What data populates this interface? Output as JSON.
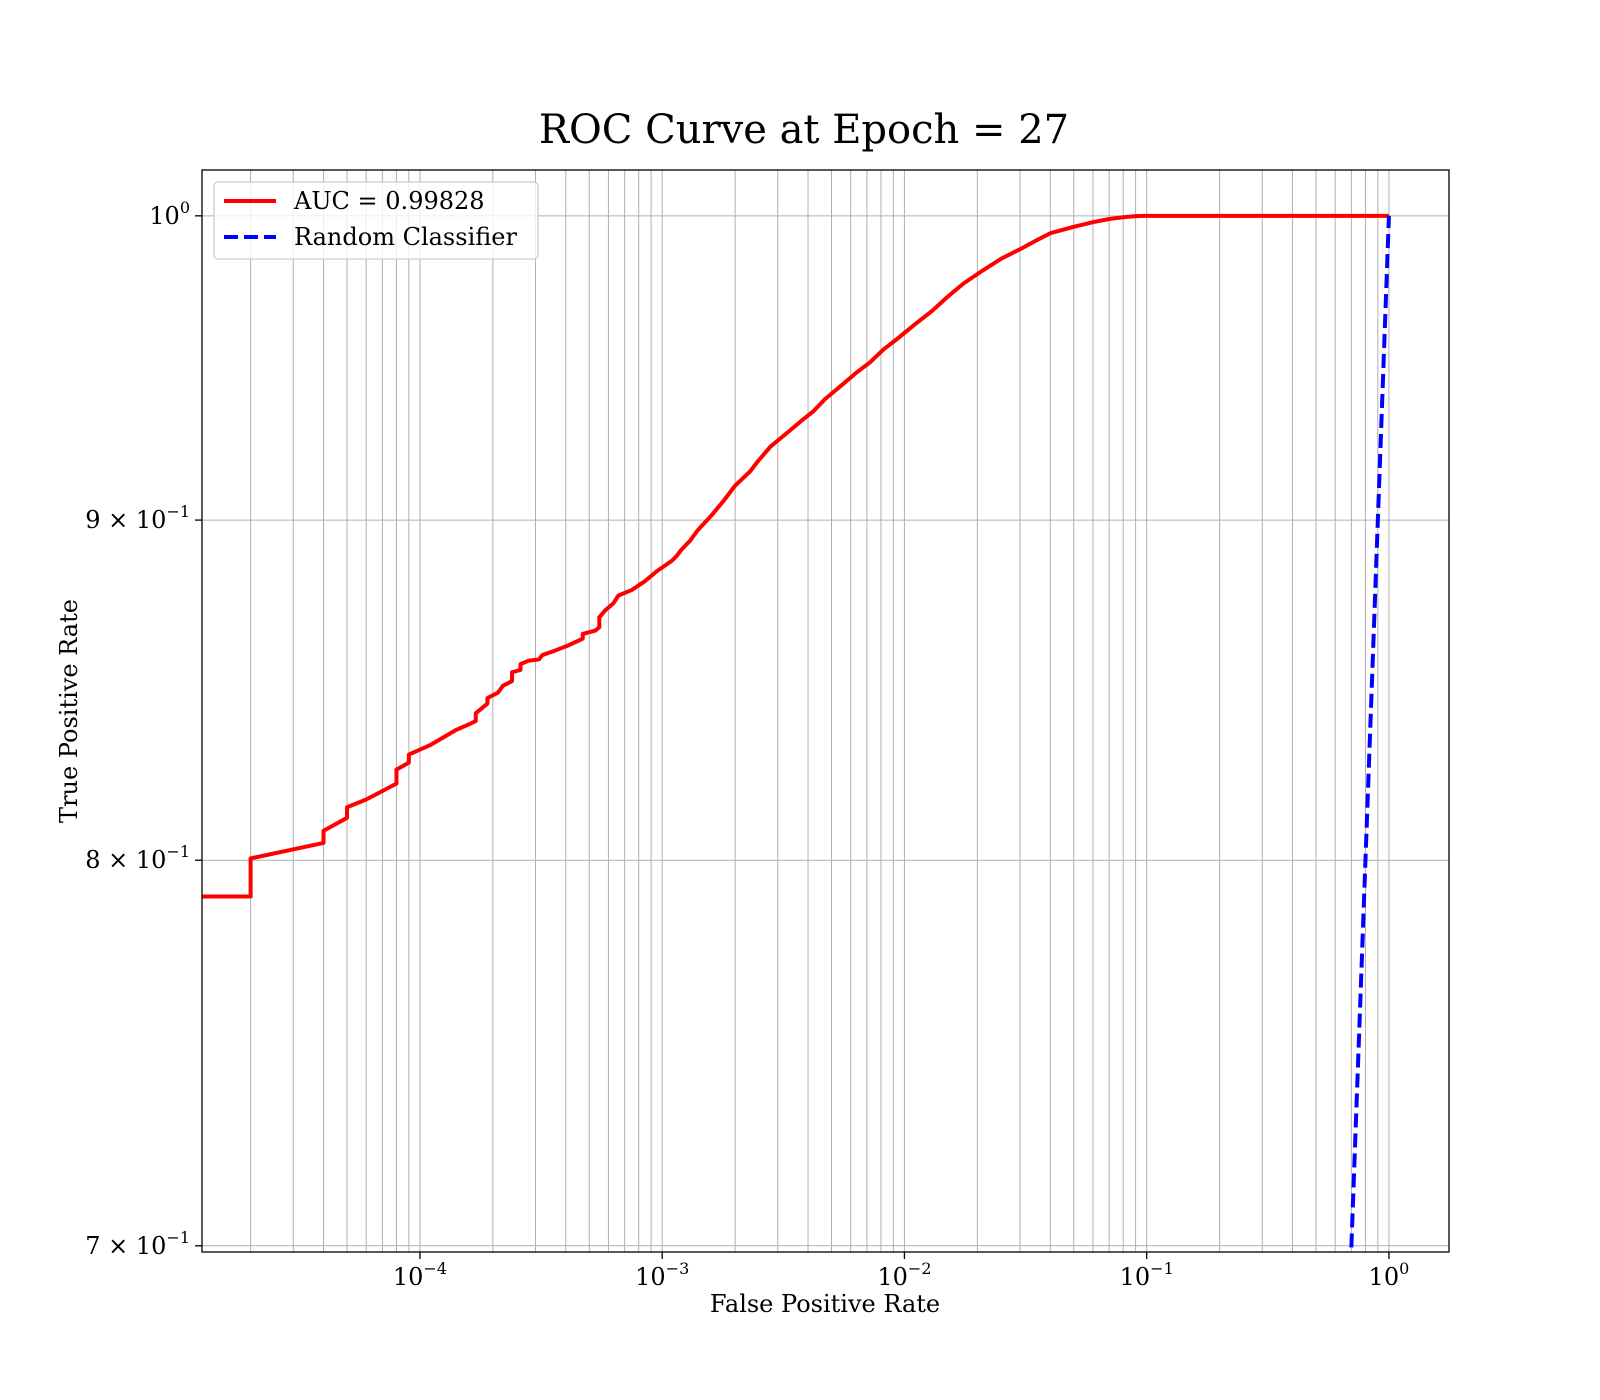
{
  "chart_data": {
    "type": "line",
    "title": "ROC Curve at Epoch = 27",
    "xlabel": "False Positive Rate",
    "ylabel": "True Positive Rate",
    "xscale": "log",
    "yscale": "log",
    "xlim": [
      1.26e-05,
      1.77
    ],
    "ylim": [
      0.6985,
      1.016
    ],
    "grid": "both major and minor",
    "legend_position": "upper left",
    "x_ticks": [
      {
        "base": "10",
        "exp": "−4",
        "value": 0.0001
      },
      {
        "base": "10",
        "exp": "−3",
        "value": 0.001
      },
      {
        "base": "10",
        "exp": "−2",
        "value": 0.01
      },
      {
        "base": "10",
        "exp": "−1",
        "value": 0.1
      },
      {
        "base": "10",
        "exp": "0",
        "value": 1
      }
    ],
    "y_ticks": [
      {
        "mant": "",
        "base": "10",
        "exp": "0",
        "value": 1.0
      },
      {
        "mant": "9 × ",
        "base": "10",
        "exp": "−1",
        "value": 0.9
      },
      {
        "mant": "8 × ",
        "base": "10",
        "exp": "−1",
        "value": 0.8
      },
      {
        "mant": "7 × ",
        "base": "10",
        "exp": "−1",
        "value": 0.7
      }
    ],
    "series": [
      {
        "name": "AUC = 0.99828",
        "color": "#ff0000",
        "style": "solid",
        "x": [
          1.26e-05,
          2e-05,
          2e-05,
          4e-05,
          4e-05,
          5e-05,
          5e-05,
          6e-05,
          8e-05,
          8e-05,
          9e-05,
          9e-05,
          0.00011,
          0.00014,
          0.00016,
          0.00017,
          0.00017,
          0.00018,
          0.00019,
          0.00019,
          0.00021,
          0.00022,
          0.00024,
          0.00024,
          0.00026,
          0.00026,
          0.00028,
          0.00031,
          0.00032,
          0.00036,
          0.00041,
          0.00047,
          0.00047,
          0.00053,
          0.00055,
          0.00055,
          0.00058,
          0.00063,
          0.00066,
          0.00075,
          0.00085,
          0.00095,
          0.0011,
          0.00115,
          0.0012,
          0.0013,
          0.0014,
          0.0016,
          0.0018,
          0.002,
          0.0023,
          0.0025,
          0.0028,
          0.0033,
          0.0038,
          0.0042,
          0.0047,
          0.0055,
          0.0063,
          0.0072,
          0.0082,
          0.0093,
          0.011,
          0.013,
          0.015,
          0.0175,
          0.021,
          0.025,
          0.03,
          0.035,
          0.04,
          0.05,
          0.06,
          0.07,
          0.08,
          0.09,
          0.1,
          0.115,
          0.14,
          0.2,
          0.5,
          1.0
        ],
        "y": [
          0.79,
          0.79,
          0.8005,
          0.8048,
          0.8082,
          0.8118,
          0.8148,
          0.817,
          0.8215,
          0.8255,
          0.8275,
          0.8298,
          0.8325,
          0.8368,
          0.8386,
          0.8395,
          0.8418,
          0.8432,
          0.8446,
          0.8462,
          0.8478,
          0.8498,
          0.8512,
          0.8538,
          0.8545,
          0.8562,
          0.8572,
          0.8576,
          0.8589,
          0.8602,
          0.8618,
          0.8638,
          0.8652,
          0.8662,
          0.8672,
          0.8702,
          0.8722,
          0.8745,
          0.8768,
          0.8785,
          0.8812,
          0.8842,
          0.8875,
          0.889,
          0.8908,
          0.8935,
          0.8968,
          0.9015,
          0.9062,
          0.9108,
          0.9152,
          0.9188,
          0.9232,
          0.9278,
          0.9318,
          0.9345,
          0.9385,
          0.943,
          0.947,
          0.9505,
          0.9548,
          0.9582,
          0.963,
          0.9676,
          0.9722,
          0.9768,
          0.9812,
          0.9852,
          0.9885,
          0.9915,
          0.994,
          0.9962,
          0.9978,
          0.9989,
          0.9995,
          0.9999,
          1.0,
          1.0,
          1.0,
          1.0,
          1.0,
          1.0
        ]
      },
      {
        "name": "Random Classifier",
        "color": "#0000ff",
        "style": "dashed",
        "x": [
          0.69,
          1.0
        ],
        "y": [
          0.69,
          1.0
        ]
      }
    ]
  }
}
